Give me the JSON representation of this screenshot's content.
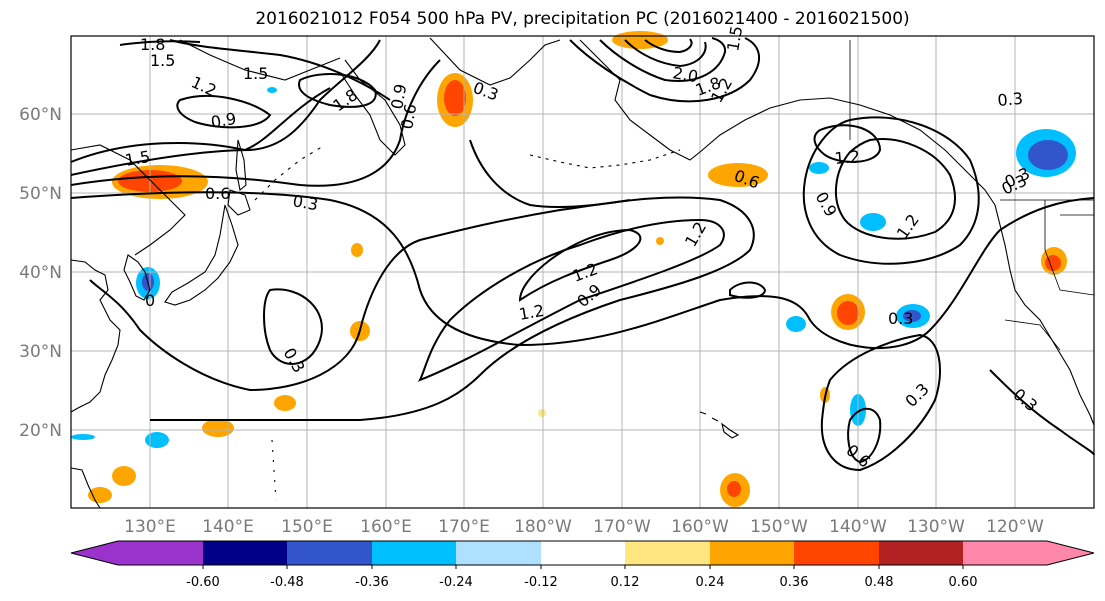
{
  "title": "2016021012 F054 500 hPa PV, precipitation PC (2016021400 - 2016021500)",
  "lat_labels": [
    "60°N",
    "50°N",
    "40°N",
    "30°N",
    "20°N"
  ],
  "lon_labels": [
    "130°E",
    "140°E",
    "150°E",
    "160°E",
    "170°E",
    "180°W",
    "170°W",
    "160°W",
    "150°W",
    "140°W",
    "130°W",
    "120°W"
  ],
  "colorbar": {
    "colors": [
      "#9933cc",
      "#000088",
      "#3355cc",
      "#00bfff",
      "#b0e0ff",
      "#ffffff",
      "#ffe680",
      "#ffa500",
      "#ff4500",
      "#b22222",
      "#ff88aa"
    ],
    "tick_labels": [
      "-0.60",
      "-0.48",
      "-0.36",
      "-0.24",
      "-0.12",
      "0.12",
      "0.24",
      "0.36",
      "0.48",
      "0.60"
    ]
  },
  "contour_labels": [
    {
      "text": "1.8"
    },
    {
      "text": "1.5"
    },
    {
      "text": "1.2"
    },
    {
      "text": "1.5"
    },
    {
      "text": "0.9"
    },
    {
      "text": "1.5"
    },
    {
      "text": "0.6"
    },
    {
      "text": "0.3"
    },
    {
      "text": "1.8"
    },
    {
      "text": "0.9"
    },
    {
      "text": "0.6"
    },
    {
      "text": "0.3"
    },
    {
      "text": "2.0"
    },
    {
      "text": "1.8"
    },
    {
      "text": "1.5"
    },
    {
      "text": "1.2"
    },
    {
      "text": "0.3"
    },
    {
      "text": "1.2"
    },
    {
      "text": "0.6"
    },
    {
      "text": "0.9"
    },
    {
      "text": "1.2"
    },
    {
      "text": "0.3"
    },
    {
      "text": "1.2"
    },
    {
      "text": "1.2"
    },
    {
      "text": "0.9"
    },
    {
      "text": "1.2"
    },
    {
      "text": "0.3"
    },
    {
      "text": "0.3"
    },
    {
      "text": "0.3"
    },
    {
      "text": "0.3"
    },
    {
      "text": "0.3"
    },
    {
      "text": "0.6"
    },
    {
      "text": "0"
    }
  ]
}
